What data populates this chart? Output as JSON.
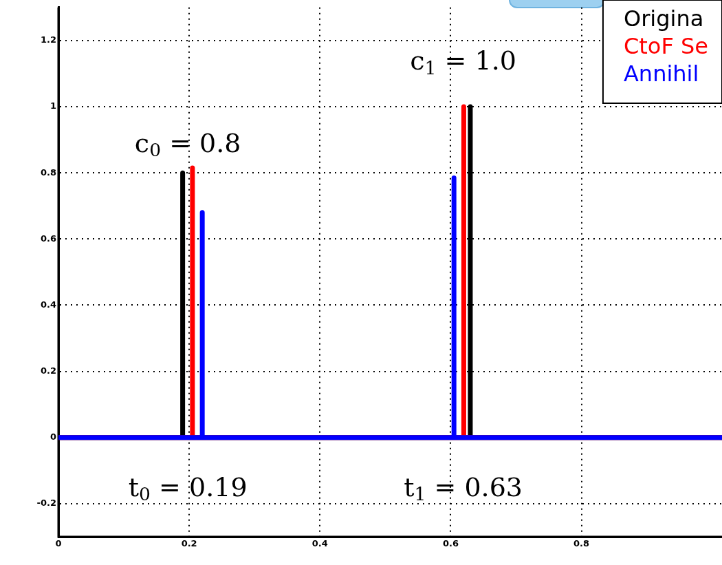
{
  "chart_data": {
    "type": "line",
    "xlim": [
      0,
      1.015
    ],
    "xticks": [
      0,
      0.2,
      0.4,
      0.6,
      0.8
    ],
    "ylim": [
      -0.3,
      1.3
    ],
    "yticks": [
      -0.2,
      0,
      0.2,
      0.4,
      0.6,
      0.8,
      1,
      1.2
    ],
    "grid": true,
    "legend": "top right",
    "marker": "none",
    "line_style": "solid",
    "series": [
      {
        "name": "Origina",
        "color": "#000000",
        "x": [
          0,
          0.19,
          0.19,
          0.19,
          0.63,
          0.63,
          0.63,
          1.015
        ],
        "values": [
          0,
          0,
          0.8,
          0,
          0,
          1.0,
          0,
          0
        ]
      },
      {
        "name": "CtoF Se",
        "color": "#ff0000",
        "x": [
          0,
          0.205,
          0.205,
          0.205,
          0.62,
          0.62,
          0.62,
          1.015
        ],
        "values": [
          0,
          0,
          0.815,
          0,
          0,
          1.0,
          0,
          0
        ]
      },
      {
        "name": "Annihil",
        "color": "#0000ff",
        "x": [
          0,
          0.22,
          0.22,
          0.22,
          0.605,
          0.605,
          0.605,
          1.015
        ],
        "values": [
          0,
          0,
          0.68,
          0,
          0,
          0.785,
          0,
          0
        ]
      }
    ],
    "annotations": [
      "c$_{0}$ = 0.8",
      "c$_{1}$ = 1.0",
      "t$_{0}$ = 0.19",
      "t$_{1}$ = 0.63"
    ]
  }
}
